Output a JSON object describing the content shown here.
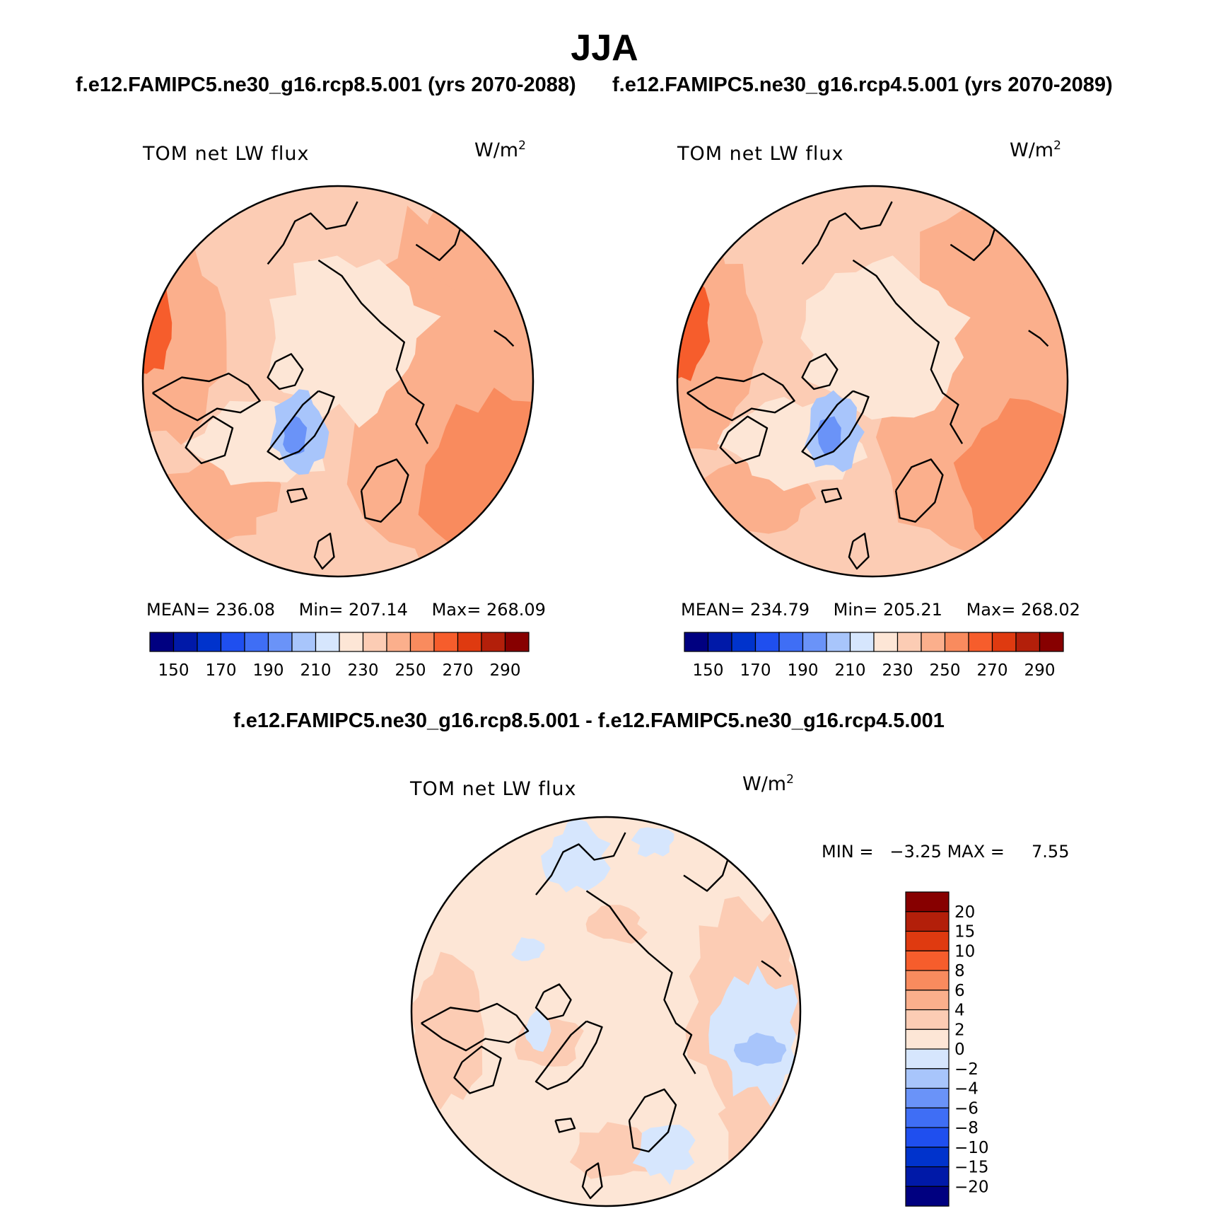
{
  "figure": {
    "title": "JJA",
    "left_subtitle": "f.e12.FAMIPC5.ne30_g16.rcp8.5.001 (yrs 2070-2088)",
    "right_subtitle": "f.e12.FAMIPC5.ne30_g16.rcp4.5.001 (yrs 2070-2089)",
    "diff_subtitle": "f.e12.FAMIPC5.ne30_g16.rcp8.5.001 - f.e12.FAMIPC5.ne30_g16.rcp4.5.001"
  },
  "panels": [
    {
      "variable": "TOM net LW flux",
      "units": "W/m",
      "units_exp": "2",
      "mean_label": "MEAN=",
      "mean": "236.08",
      "min_label": "Min=",
      "min": "207.14",
      "max_label": "Max=",
      "max": "268.09"
    },
    {
      "variable": "TOM net LW flux",
      "units": "W/m",
      "units_exp": "2",
      "mean_label": "MEAN=",
      "mean": "234.79",
      "min_label": "Min=",
      "min": "205.21",
      "max_label": "Max=",
      "max": "268.02"
    }
  ],
  "diff_panel": {
    "variable": "TOM net LW flux",
    "units": "W/m",
    "units_exp": "2",
    "min_label": "MIN =",
    "min": "−3.25",
    "max_label": "MAX =",
    "max": "7.55"
  },
  "colors": {
    "abs_scale": [
      "#000080",
      "#0019a8",
      "#0033cc",
      "#1f4fef",
      "#3f6ef5",
      "#6a93f8",
      "#a8c5fb",
      "#d6e6fd",
      "#fde6d6",
      "#fcccb4",
      "#fbaf8c",
      "#f98b5e",
      "#f65d2c",
      "#df3a10",
      "#b31f0a",
      "#870000"
    ],
    "diff_scale": [
      "#000080",
      "#0019a8",
      "#0033cc",
      "#1f4fef",
      "#3f6ef5",
      "#6a93f8",
      "#a8c5fb",
      "#d6e6fd",
      "#fde6d6",
      "#fcccb4",
      "#fbaf8c",
      "#f98b5e",
      "#f65d2c",
      "#df3a10",
      "#b31f0a",
      "#870000"
    ]
  },
  "colorbars": {
    "abs_ticks": [
      "150",
      "170",
      "190",
      "210",
      "230",
      "250",
      "270",
      "290"
    ],
    "diff_ticks": [
      "20",
      "15",
      "10",
      "8",
      "6",
      "4",
      "2",
      "0",
      "−2",
      "−4",
      "−6",
      "−8",
      "−10",
      "−15",
      "−20"
    ]
  },
  "map_fields": {
    "abs_base_level": 9,
    "abs_regions": [
      {
        "level": 11,
        "desc": "outer ring"
      },
      {
        "level": 12,
        "desc": "north pacific / east"
      },
      {
        "level": 13,
        "desc": "western edge"
      },
      {
        "level": 8,
        "desc": "arctic interior"
      },
      {
        "level": 7,
        "desc": "greenland"
      },
      {
        "level": 6,
        "desc": "greenland core"
      }
    ],
    "diff_base_level": 8,
    "diff_regions": [
      {
        "level": 7,
        "desc": "negative patches"
      },
      {
        "level": 6,
        "desc": "strong negative"
      },
      {
        "level": 9,
        "desc": "positive patches"
      },
      {
        "level": 10,
        "desc": "strong positive"
      }
    ]
  }
}
